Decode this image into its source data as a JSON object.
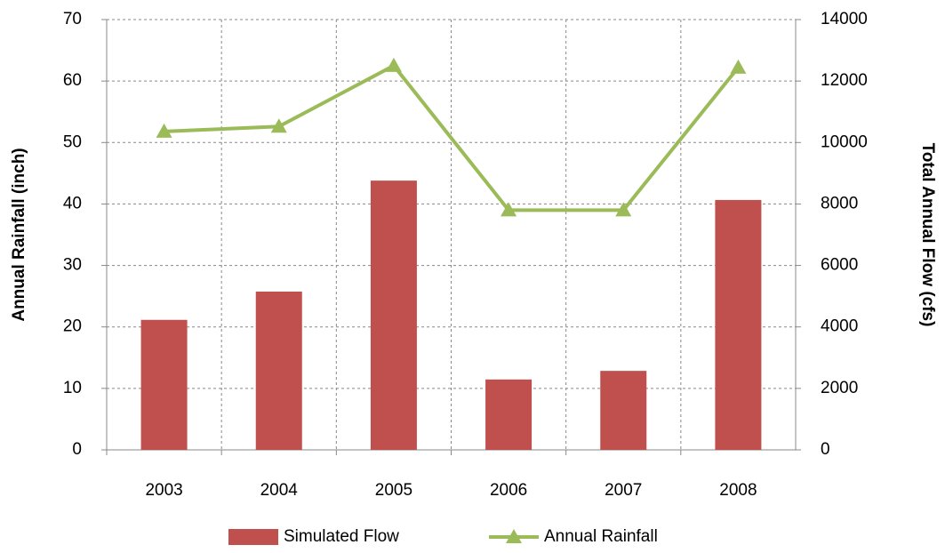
{
  "chart_data": {
    "type": "bar-line",
    "categories": [
      "2003",
      "2004",
      "2005",
      "2006",
      "2007",
      "2008"
    ],
    "y_label": "Annual Rainfall (inch)",
    "y2_label": "Total Annual Flow (cfs)",
    "ylim": [
      0,
      70
    ],
    "yticks": [
      0,
      10,
      20,
      30,
      40,
      50,
      60,
      70
    ],
    "y2lim": [
      0,
      14000
    ],
    "y2ticks": [
      0,
      2000,
      4000,
      6000,
      8000,
      10000,
      12000,
      14000
    ],
    "grid": true,
    "legend": "bottom",
    "series": [
      {
        "name": "Simulated Flow",
        "type": "bar",
        "axis": "y2",
        "color": "#c0504d",
        "values": [
          4230,
          5150,
          8760,
          2290,
          2570,
          8130
        ]
      },
      {
        "name": "Annual Rainfall",
        "type": "line",
        "axis": "y",
        "color": "#9bbb59",
        "values": [
          51.8,
          52.6,
          62.5,
          39.0,
          39.0,
          62.2
        ]
      }
    ]
  }
}
